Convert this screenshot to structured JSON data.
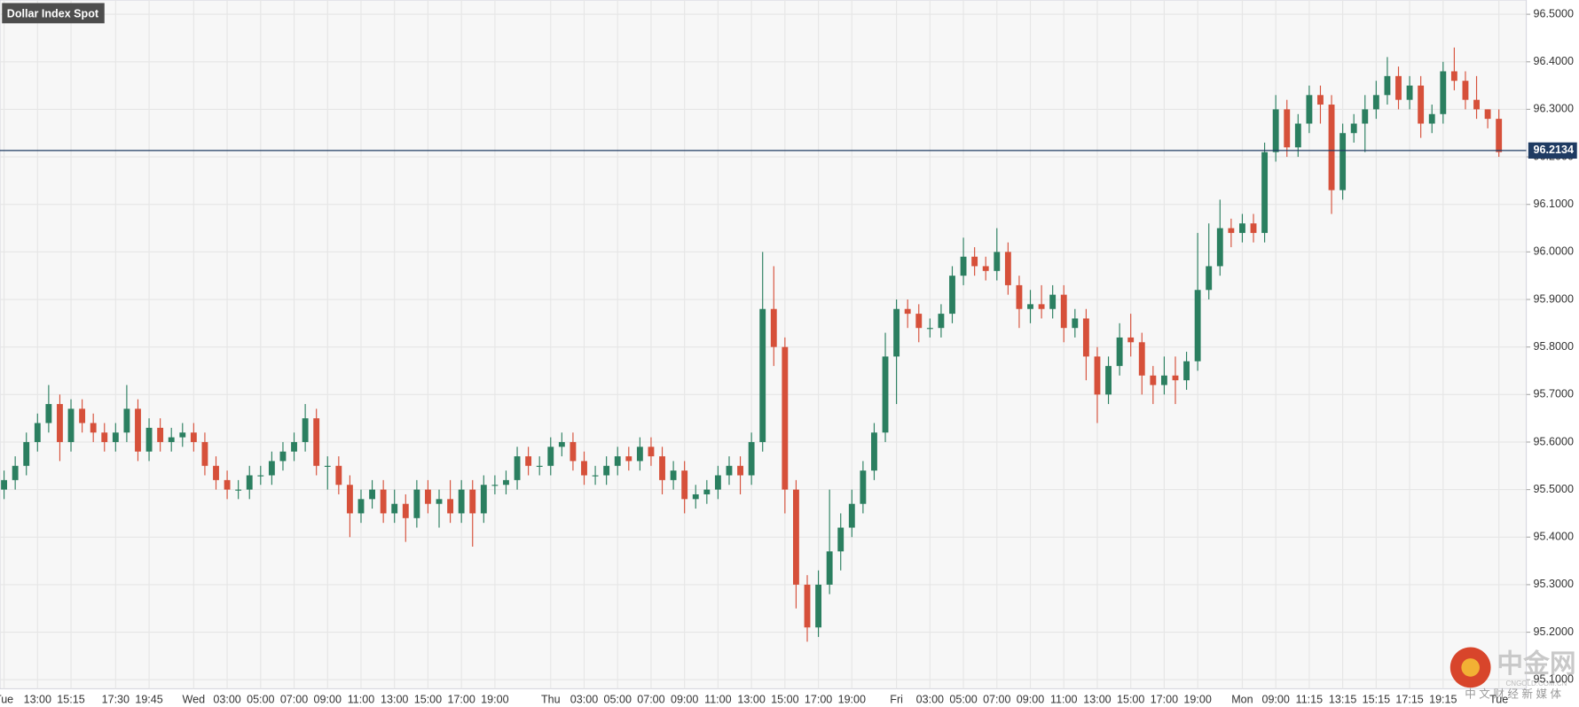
{
  "chart_data": {
    "type": "candlestick",
    "title": "Dollar Index Spot",
    "categories": [
      "Tue",
      null,
      null,
      "13:00",
      null,
      null,
      "15:15",
      null,
      null,
      null,
      "17:30",
      null,
      null,
      "19:45",
      null,
      null,
      null,
      "Wed",
      null,
      null,
      "03:00",
      null,
      null,
      "05:00",
      null,
      null,
      "07:00",
      null,
      null,
      "09:00",
      null,
      null,
      "11:00",
      null,
      null,
      "13:00",
      null,
      null,
      "15:00",
      null,
      null,
      "17:00",
      null,
      null,
      "19:00",
      null,
      null,
      null,
      null,
      "Thu",
      null,
      null,
      "03:00",
      null,
      null,
      "05:00",
      null,
      null,
      "07:00",
      null,
      null,
      "09:00",
      null,
      null,
      "11:00",
      null,
      null,
      "13:00",
      null,
      null,
      "15:00",
      null,
      null,
      "17:00",
      null,
      null,
      "19:00",
      null,
      null,
      null,
      "Fri",
      null,
      null,
      "03:00",
      null,
      null,
      "05:00",
      null,
      null,
      "07:00",
      null,
      null,
      "09:00",
      null,
      null,
      "11:00",
      null,
      null,
      "13:00",
      null,
      null,
      "15:00",
      null,
      null,
      "17:00",
      null,
      null,
      "19:00",
      null,
      null,
      null,
      "Mon",
      null,
      null,
      "09:00",
      null,
      null,
      "11:15",
      null,
      null,
      "13:15",
      null,
      null,
      "15:15",
      null,
      null,
      "17:15",
      null,
      null,
      "19:15",
      null,
      null,
      null,
      null,
      "Tue"
    ],
    "open": [
      95.5,
      95.52,
      95.55,
      95.6,
      95.64,
      95.68,
      95.6,
      95.67,
      95.64,
      95.62,
      95.6,
      95.62,
      95.67,
      95.58,
      95.63,
      95.6,
      95.61,
      95.62,
      95.6,
      95.55,
      95.52,
      95.5,
      95.5,
      95.53,
      95.53,
      95.56,
      95.58,
      95.6,
      95.65,
      95.55,
      95.55,
      95.51,
      95.45,
      95.48,
      95.5,
      95.45,
      95.47,
      95.44,
      95.5,
      95.47,
      95.48,
      95.45,
      95.5,
      95.45,
      95.51,
      95.51,
      95.52,
      95.57,
      95.55,
      95.55,
      95.59,
      95.6,
      95.56,
      95.53,
      95.53,
      95.55,
      95.57,
      95.56,
      95.59,
      95.57,
      95.52,
      95.54,
      95.48,
      95.49,
      95.5,
      95.53,
      95.55,
      95.53,
      95.6,
      95.88,
      95.8,
      95.5,
      95.3,
      95.21,
      95.3,
      95.37,
      95.42,
      95.47,
      95.54,
      95.62,
      95.78,
      95.88,
      95.87,
      95.84,
      95.84,
      95.87,
      95.95,
      95.99,
      95.97,
      95.96,
      96.0,
      95.93,
      95.88,
      95.89,
      95.88,
      95.91,
      95.84,
      95.86,
      95.78,
      95.7,
      95.76,
      95.82,
      95.81,
      95.74,
      95.72,
      95.74,
      95.73,
      95.77,
      95.92,
      95.97,
      96.05,
      96.04,
      96.06,
      96.04,
      96.21,
      96.3,
      96.22,
      96.27,
      96.33,
      96.31,
      96.13,
      96.25,
      96.27,
      96.3,
      96.33,
      96.37,
      96.32,
      96.35,
      96.27,
      96.29,
      96.38,
      96.36,
      96.32,
      96.3,
      96.28
    ],
    "high": [
      95.54,
      95.57,
      95.62,
      95.66,
      95.72,
      95.7,
      95.69,
      95.69,
      95.66,
      95.64,
      95.64,
      95.72,
      95.69,
      95.65,
      95.65,
      95.63,
      95.64,
      95.64,
      95.62,
      95.57,
      95.54,
      95.52,
      95.55,
      95.55,
      95.58,
      95.6,
      95.62,
      95.68,
      95.67,
      95.57,
      95.57,
      95.53,
      95.5,
      95.52,
      95.52,
      95.5,
      95.49,
      95.52,
      95.52,
      95.5,
      95.52,
      95.52,
      95.52,
      95.53,
      95.53,
      95.54,
      95.59,
      95.59,
      95.57,
      95.61,
      95.62,
      95.62,
      95.58,
      95.55,
      95.57,
      95.59,
      95.59,
      95.61,
      95.61,
      95.59,
      95.56,
      95.56,
      95.51,
      95.52,
      95.55,
      95.57,
      95.57,
      95.62,
      96.0,
      95.97,
      95.82,
      95.52,
      95.32,
      95.33,
      95.5,
      95.45,
      95.5,
      95.56,
      95.64,
      95.83,
      95.9,
      95.9,
      95.89,
      95.86,
      95.89,
      95.97,
      96.03,
      96.01,
      95.99,
      96.05,
      96.02,
      95.95,
      95.92,
      95.93,
      95.93,
      95.93,
      95.88,
      95.88,
      95.8,
      95.78,
      95.85,
      95.87,
      95.83,
      95.76,
      95.78,
      95.78,
      95.79,
      96.04,
      96.06,
      96.11,
      96.07,
      96.08,
      96.08,
      96.23,
      96.33,
      96.32,
      96.29,
      96.35,
      96.35,
      96.33,
      96.27,
      96.29,
      96.33,
      96.36,
      96.41,
      96.39,
      96.37,
      96.37,
      96.31,
      96.4,
      96.43,
      96.38,
      96.37,
      96.3,
      96.3
    ],
    "low": [
      95.48,
      95.5,
      95.53,
      95.58,
      95.62,
      95.56,
      95.58,
      95.62,
      95.6,
      95.58,
      95.58,
      95.6,
      95.56,
      95.56,
      95.58,
      95.58,
      95.59,
      95.58,
      95.53,
      95.5,
      95.48,
      95.48,
      95.48,
      95.51,
      95.51,
      95.54,
      95.56,
      95.58,
      95.53,
      95.5,
      95.49,
      95.4,
      95.43,
      95.46,
      95.43,
      95.43,
      95.39,
      95.42,
      95.45,
      95.42,
      95.43,
      95.43,
      95.38,
      95.43,
      95.49,
      95.49,
      95.5,
      95.53,
      95.53,
      95.53,
      95.57,
      95.54,
      95.51,
      95.51,
      95.51,
      95.53,
      95.54,
      95.54,
      95.55,
      95.49,
      95.5,
      95.45,
      95.46,
      95.47,
      95.48,
      95.51,
      95.49,
      95.51,
      95.58,
      95.76,
      95.45,
      95.25,
      95.18,
      95.19,
      95.28,
      95.33,
      95.4,
      95.45,
      95.52,
      95.6,
      95.68,
      95.84,
      95.81,
      95.82,
      95.82,
      95.85,
      95.93,
      95.95,
      95.94,
      95.94,
      95.91,
      95.84,
      95.85,
      95.86,
      95.86,
      95.81,
      95.82,
      95.73,
      95.64,
      95.68,
      95.74,
      95.78,
      95.7,
      95.68,
      95.7,
      95.68,
      95.71,
      95.75,
      95.9,
      95.95,
      96.01,
      96.02,
      96.02,
      96.02,
      96.19,
      96.2,
      96.2,
      96.25,
      96.27,
      96.08,
      96.11,
      96.23,
      96.21,
      96.28,
      96.31,
      96.3,
      96.3,
      96.24,
      96.25,
      96.27,
      96.34,
      96.3,
      96.28,
      96.26,
      96.2
    ],
    "close": [
      95.52,
      95.55,
      95.6,
      95.64,
      95.68,
      95.6,
      95.67,
      95.64,
      95.62,
      95.6,
      95.62,
      95.67,
      95.58,
      95.63,
      95.6,
      95.61,
      95.62,
      95.6,
      95.55,
      95.52,
      95.5,
      95.5,
      95.53,
      95.53,
      95.56,
      95.58,
      95.6,
      95.65,
      95.55,
      95.55,
      95.51,
      95.45,
      95.48,
      95.5,
      95.45,
      95.47,
      95.44,
      95.5,
      95.47,
      95.48,
      95.45,
      95.5,
      95.45,
      95.51,
      95.51,
      95.52,
      95.57,
      95.55,
      95.55,
      95.59,
      95.6,
      95.56,
      95.53,
      95.53,
      95.55,
      95.57,
      95.56,
      95.59,
      95.57,
      95.52,
      95.54,
      95.48,
      95.49,
      95.5,
      95.53,
      95.55,
      95.53,
      95.6,
      95.88,
      95.8,
      95.5,
      95.3,
      95.21,
      95.3,
      95.37,
      95.42,
      95.47,
      95.54,
      95.62,
      95.78,
      95.88,
      95.87,
      95.84,
      95.84,
      95.87,
      95.95,
      95.99,
      95.97,
      95.96,
      96.0,
      95.93,
      95.88,
      95.89,
      95.88,
      95.91,
      95.84,
      95.86,
      95.78,
      95.7,
      95.76,
      95.82,
      95.81,
      95.74,
      95.72,
      95.74,
      95.73,
      95.77,
      95.92,
      95.97,
      96.05,
      96.04,
      96.06,
      96.04,
      96.21,
      96.3,
      96.22,
      96.27,
      96.33,
      96.31,
      96.13,
      96.25,
      96.27,
      96.3,
      96.33,
      96.37,
      96.32,
      96.35,
      96.27,
      96.29,
      96.38,
      96.36,
      96.32,
      96.3,
      96.28,
      96.21
    ],
    "last_price": 96.2134,
    "up_color": "#2b7f60",
    "down_color": "#d6503a",
    "last_price_color": "#1f3b62",
    "ylim": [
      95.081,
      96.53
    ],
    "yticks": [
      {
        "value": 95.1,
        "label": "95.1000"
      },
      {
        "value": 95.2,
        "label": "95.2000"
      },
      {
        "value": 95.3,
        "label": "95.3000"
      },
      {
        "value": 95.4,
        "label": "95.4000"
      },
      {
        "value": 95.5,
        "label": "95.5000"
      },
      {
        "value": 95.6,
        "label": "95.6000"
      },
      {
        "value": 95.7,
        "label": "95.7000"
      },
      {
        "value": 95.8,
        "label": "95.8000"
      },
      {
        "value": 95.9,
        "label": "95.9000"
      },
      {
        "value": 96.0,
        "label": "96.0000"
      },
      {
        "value": 96.1,
        "label": "96.1000"
      },
      {
        "value": 96.2,
        "label": "96.2000"
      },
      {
        "value": 96.3,
        "label": "96.3000"
      },
      {
        "value": 96.4,
        "label": "96.4000"
      },
      {
        "value": 96.5,
        "label": "96.5000"
      }
    ],
    "grid": true
  },
  "watermark": {
    "name": "中金网",
    "site": "CNGOLD.COM.CN",
    "slogan": "中 文 财 经 新 媒 体"
  }
}
